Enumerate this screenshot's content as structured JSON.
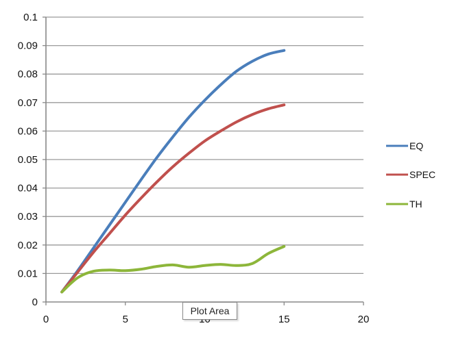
{
  "chart_data": {
    "type": "line",
    "title": "",
    "xlabel": "",
    "ylabel": "",
    "xlim": [
      0,
      20
    ],
    "ylim": [
      0,
      0.1
    ],
    "x_ticks": [
      "0",
      "5",
      "10",
      "15",
      "20"
    ],
    "y_ticks": [
      "0",
      "0.01",
      "0.02",
      "0.03",
      "0.04",
      "0.05",
      "0.06",
      "0.07",
      "0.08",
      "0.09",
      "0.1"
    ],
    "grid": "horizontal",
    "legend_position": "right",
    "x": [
      1,
      2,
      3,
      4,
      5,
      6,
      7,
      8,
      9,
      10,
      11,
      12,
      13,
      14,
      15
    ],
    "series": [
      {
        "name": "EQ",
        "color": "#4a7ebb",
        "values": [
          0.0035,
          0.011,
          0.019,
          0.027,
          0.035,
          0.043,
          0.0508,
          0.058,
          0.0648,
          0.0708,
          0.0762,
          0.081,
          0.0845,
          0.087,
          0.0883
        ]
      },
      {
        "name": "SPEC",
        "color": "#c0504d",
        "values": [
          0.0035,
          0.0105,
          0.0175,
          0.024,
          0.0305,
          0.0365,
          0.0422,
          0.0475,
          0.0522,
          0.0565,
          0.06,
          0.0632,
          0.0658,
          0.0678,
          0.0692
        ]
      },
      {
        "name": "TH",
        "color": "#8db63a",
        "values": [
          0.0035,
          0.0085,
          0.0108,
          0.0112,
          0.011,
          0.0115,
          0.0125,
          0.013,
          0.0122,
          0.0128,
          0.0132,
          0.0128,
          0.0135,
          0.017,
          0.0195
        ]
      }
    ]
  },
  "ui": {
    "tooltip_text": "Plot Area"
  }
}
